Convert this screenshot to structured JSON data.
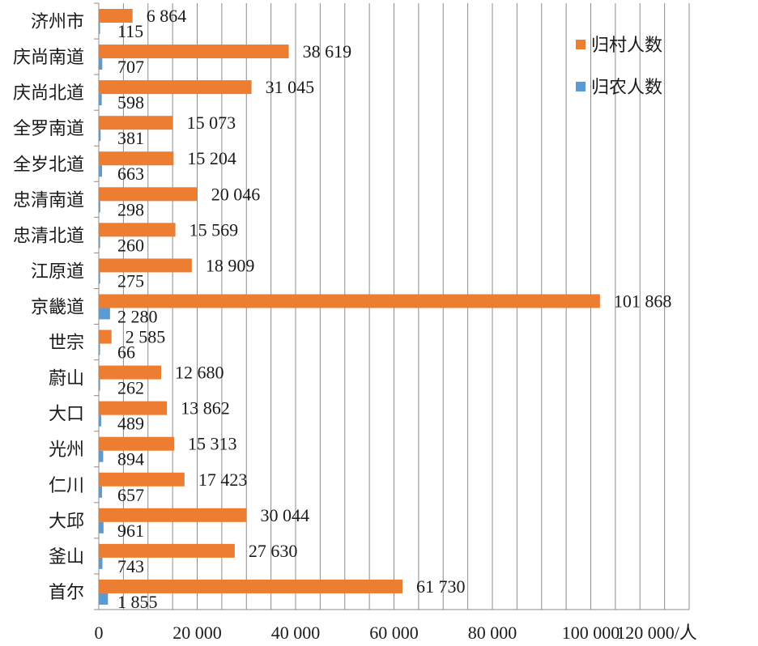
{
  "chart_data": {
    "type": "bar",
    "orientation": "horizontal",
    "categories": [
      "济州市",
      "庆尚南道",
      "庆尚北道",
      "全罗南道",
      "全岁北道",
      "忠清南道",
      "忠清北道",
      "江原道",
      "京畿道",
      "世宗",
      "蔚山",
      "大口",
      "光州",
      "仁川",
      "大邱",
      "釜山",
      "首尔"
    ],
    "series": [
      {
        "name": "归村人数",
        "color": "#ED7D31",
        "values": [
          6864,
          38619,
          31045,
          15073,
          15204,
          20046,
          15569,
          18909,
          101868,
          2585,
          12680,
          13862,
          15313,
          17423,
          30044,
          27630,
          61730
        ],
        "labels": [
          "6 864",
          "38 619",
          "31 045",
          "15 073",
          "15 204",
          "20 046",
          "15 569",
          "18 909",
          "101 868",
          "2 585",
          "12 680",
          "13 862",
          "15 313",
          "17 423",
          "30 044",
          "27 630",
          "61 730"
        ]
      },
      {
        "name": "归农人数",
        "color": "#5B9BD5",
        "values": [
          115,
          707,
          598,
          381,
          663,
          298,
          260,
          275,
          2280,
          66,
          262,
          489,
          894,
          657,
          961,
          743,
          1855
        ],
        "labels": [
          "115",
          "707",
          "598",
          "381",
          "663",
          "298",
          "260",
          "275",
          "2 280",
          "66",
          "262",
          "489",
          "894",
          "657",
          "961",
          "743",
          "1 855"
        ]
      }
    ],
    "xlim": [
      0,
      120000
    ],
    "x_ticks": [
      0,
      20000,
      40000,
      60000,
      80000,
      100000,
      120000
    ],
    "x_tick_labels": [
      "0",
      "20 000",
      "40 000",
      "60 000",
      "80 000",
      "100 000",
      "120 000/人"
    ],
    "grid": "vertical",
    "legend_position": "top-right"
  }
}
